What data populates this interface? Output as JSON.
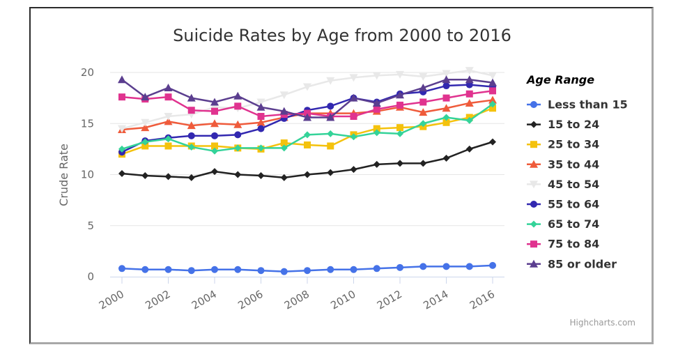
{
  "chart_data": {
    "type": "line",
    "title": "Suicide Rates by Age from 2000 to 2016",
    "xlabel": "",
    "ylabel": "Crude Rate",
    "x": [
      2000,
      2001,
      2002,
      2003,
      2004,
      2005,
      2006,
      2007,
      2008,
      2009,
      2010,
      2011,
      2012,
      2013,
      2014,
      2015,
      2016
    ],
    "x_tick_labels": [
      "2000",
      "2002",
      "2004",
      "2006",
      "2008",
      "2010",
      "2012",
      "2014",
      "2016"
    ],
    "y_tick_labels": [
      "0",
      "5",
      "10",
      "15",
      "20"
    ],
    "ylim": [
      0,
      20
    ],
    "grid": true,
    "legend_title": "Age Range",
    "legend_position": "right",
    "credits": "Highcharts.com",
    "series": [
      {
        "name": "Less than 15",
        "color": "#4572e8",
        "marker": "circle",
        "values": [
          0.8,
          0.7,
          0.7,
          0.6,
          0.7,
          0.7,
          0.6,
          0.5,
          0.6,
          0.7,
          0.7,
          0.8,
          0.9,
          1.0,
          1.0,
          1.0,
          1.1
        ]
      },
      {
        "name": "15 to 24",
        "color": "#222222",
        "marker": "diamond",
        "values": [
          10.1,
          9.9,
          9.8,
          9.7,
          10.3,
          10.0,
          9.9,
          9.7,
          10.0,
          10.2,
          10.5,
          11.0,
          11.1,
          11.1,
          11.6,
          12.5,
          13.2
        ]
      },
      {
        "name": "25 to 34",
        "color": "#f4c20d",
        "marker": "square",
        "values": [
          12.0,
          12.8,
          12.8,
          12.8,
          12.8,
          12.6,
          12.5,
          13.1,
          12.9,
          12.8,
          13.9,
          14.5,
          14.6,
          14.7,
          15.1,
          15.6,
          16.5
        ]
      },
      {
        "name": "35 to 44",
        "color": "#ef5b3b",
        "marker": "triangle",
        "values": [
          14.4,
          14.6,
          15.2,
          14.8,
          15.0,
          14.9,
          15.1,
          15.6,
          16.0,
          16.0,
          16.0,
          16.2,
          16.6,
          16.1,
          16.5,
          17.0,
          17.3
        ]
      },
      {
        "name": "45 to 54",
        "color": "#e8e8e8",
        "marker": "triangle-down",
        "values": [
          14.5,
          15.1,
          15.7,
          15.9,
          16.6,
          16.5,
          17.1,
          17.8,
          18.6,
          19.2,
          19.5,
          19.7,
          19.8,
          19.6,
          19.9,
          20.2,
          19.7
        ]
      },
      {
        "name": "55 to 64",
        "color": "#3228b0",
        "marker": "circle",
        "values": [
          12.2,
          13.3,
          13.6,
          13.8,
          13.8,
          13.9,
          14.5,
          15.5,
          16.3,
          16.7,
          17.5,
          17.1,
          17.9,
          18.1,
          18.7,
          18.8,
          18.6
        ]
      },
      {
        "name": "65 to 74",
        "color": "#34d399",
        "marker": "diamond",
        "values": [
          12.5,
          13.2,
          13.5,
          12.7,
          12.3,
          12.6,
          12.6,
          12.6,
          13.9,
          14.0,
          13.7,
          14.1,
          14.0,
          15.0,
          15.6,
          15.3,
          16.9
        ]
      },
      {
        "name": "75 to 84",
        "color": "#e0338f",
        "marker": "square",
        "values": [
          17.6,
          17.4,
          17.6,
          16.3,
          16.2,
          16.7,
          15.7,
          15.9,
          16.0,
          15.7,
          15.7,
          16.4,
          16.8,
          17.1,
          17.5,
          17.9,
          18.2
        ]
      },
      {
        "name": "85 or older",
        "color": "#5b3e8f",
        "marker": "triangle",
        "values": [
          19.3,
          17.6,
          18.5,
          17.5,
          17.1,
          17.7,
          16.6,
          16.2,
          15.6,
          15.6,
          17.5,
          17.0,
          17.8,
          18.5,
          19.3,
          19.3,
          19.0
        ]
      }
    ]
  }
}
